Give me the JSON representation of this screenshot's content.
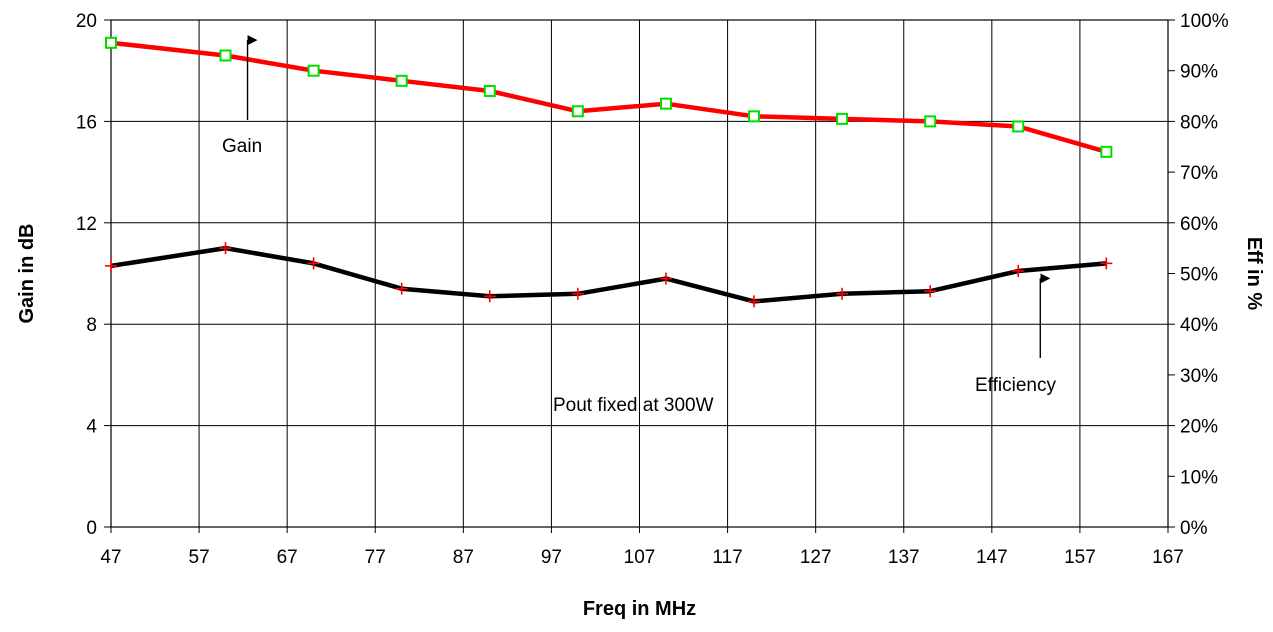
{
  "chart_data": {
    "type": "line",
    "title": "",
    "xlabel": "Freq in MHz",
    "ylabel": "Gain in dB",
    "y2label": "Eff in %",
    "xlim": [
      47,
      167
    ],
    "ylim": [
      0,
      20
    ],
    "y2lim": [
      0,
      100
    ],
    "x_ticks": [
      "47",
      "57",
      "67",
      "77",
      "87",
      "97",
      "107",
      "117",
      "127",
      "137",
      "147",
      "157",
      "167"
    ],
    "y_ticks": [
      "0",
      "4",
      "8",
      "12",
      "16",
      "20"
    ],
    "y2_ticks": [
      "0%",
      "10%",
      "20%",
      "30%",
      "40%",
      "50%",
      "60%",
      "70%",
      "80%",
      "90%",
      "100%"
    ],
    "grid": true,
    "x": [
      47,
      60,
      70,
      80,
      90,
      100,
      110,
      120,
      130,
      140,
      150,
      160
    ],
    "series": [
      {
        "axis": "left",
        "values": [
          19.1,
          18.6,
          18.0,
          17.6,
          17.2,
          16.4,
          16.7,
          16.2,
          16.1,
          16.0,
          15.8,
          14.8
        ],
        "color": "#ff0000",
        "marker": "square",
        "marker_color": "#00dd00"
      },
      {
        "axis": "right",
        "values": [
          51.5,
          55.0,
          52.0,
          47.0,
          45.5,
          46.0,
          49.0,
          44.5,
          46.0,
          46.5,
          50.5,
          52.0
        ],
        "color": "#000000",
        "marker": "plus",
        "marker_color": "#ff0000"
      }
    ],
    "annotations": [
      {
        "text": "Gain",
        "arrow_to": {
          "x": 62.5,
          "y": 19.6
        }
      },
      {
        "text": "Efficiency",
        "arrow_to": {
          "x": 152.5,
          "y": 10.2
        }
      },
      {
        "text": "Pout fixed at 300W"
      }
    ]
  }
}
